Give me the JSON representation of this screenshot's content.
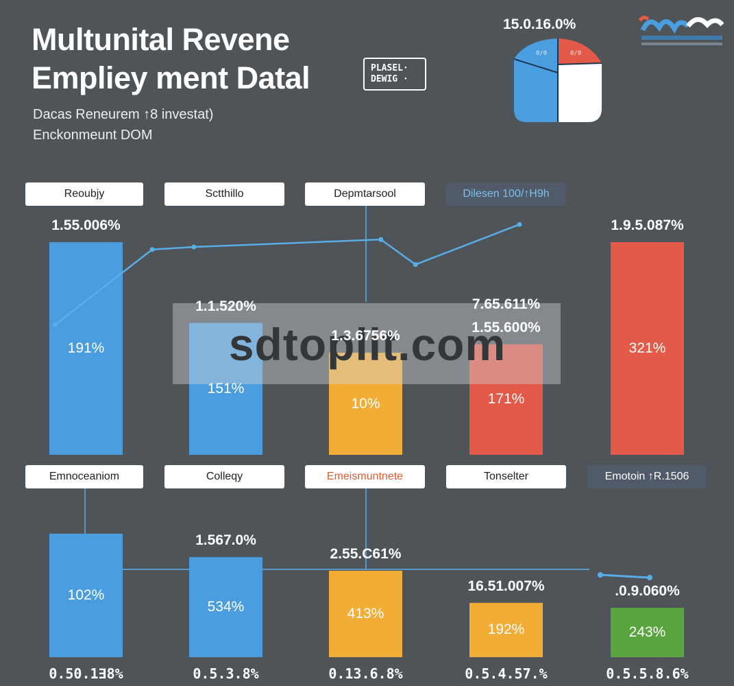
{
  "title": {
    "line1": "Multunital Revene",
    "line2": "Empliey ment Datal"
  },
  "tag_box": {
    "line1": "PLASEL·",
    "line2": "DEWIG ·"
  },
  "subtitle": {
    "line1": "Dacas Reneurem ↑8 investat)",
    "line2": "Enckonmeunt  DOM"
  },
  "pie_value": "15.0.16.0%",
  "colors": {
    "blue": "#4a9ee0",
    "orange": "#f2ad36",
    "red": "#e35a48",
    "green": "#5aa53f",
    "background": "#4f5458",
    "line": "#5aaee8"
  },
  "chart_data": [
    {
      "type": "bar",
      "title": "",
      "categories": [
        "Reoubjy",
        "Sctthillo",
        "Depmtarsool",
        "Dilesen 100/↑H9h",
        ""
      ],
      "values": [
        100,
        62,
        48,
        52,
        100
      ],
      "top_labels": [
        "1.55.006%",
        "1.1.520%",
        "1.3.6756%",
        "1.55.600%",
        "1.9.5.087%"
      ],
      "inner_labels": [
        "191%",
        "151%",
        "10%",
        "171%",
        "321%"
      ],
      "extra_labels": [
        "",
        "",
        "",
        "7.65.611%",
        ""
      ],
      "bar_colors": [
        "blue",
        "blue",
        "orange",
        "red",
        "red"
      ],
      "line": [
        {
          "x": 0.05,
          "y": 0.52
        },
        {
          "x": 0.19,
          "y": 0.82
        },
        {
          "x": 0.25,
          "y": 0.83
        },
        {
          "x": 0.52,
          "y": 0.86
        },
        {
          "x": 0.57,
          "y": 0.76
        },
        {
          "x": 0.72,
          "y": 0.92
        }
      ]
    },
    {
      "type": "bar",
      "title": "",
      "categories": [
        "Emnoceaniom",
        "Colleqy",
        "Emeismuntnete",
        "Tonselter",
        "Emotoin ↑R.1506"
      ],
      "values": [
        100,
        81,
        70,
        44,
        40
      ],
      "top_labels": [
        "",
        "1.567.0%",
        "2.55.C61%",
        "16.51.007%",
        ".0.9.060%"
      ],
      "inner_labels": [
        "102%",
        "534%",
        "413%",
        "192%",
        "243%"
      ],
      "bar_colors": [
        "blue",
        "blue",
        "orange",
        "orange",
        "green"
      ],
      "bottom_ticks": [
        "0.50.1∃8%",
        "0.5.3.8%",
        "0.13.6.8%",
        "0.5.4.57.%",
        "0.5.5.8.6%"
      ]
    }
  ],
  "logo_caption": "ᗅᐱᐱᑎ",
  "watermark": "sdtoplit.com"
}
